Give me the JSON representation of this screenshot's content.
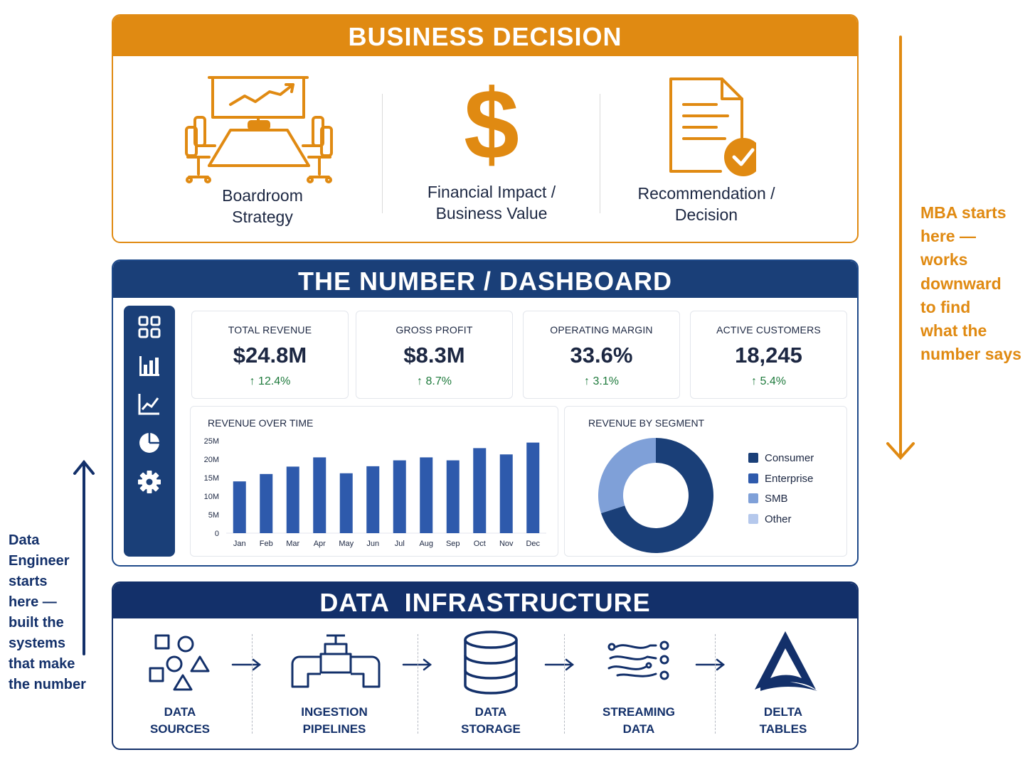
{
  "business": {
    "title": "BUSINESS DECISION",
    "items": [
      {
        "line1": "Boardroom",
        "line2": "Strategy",
        "icon": "boardroom-icon"
      },
      {
        "line1": "Financial Impact /",
        "line2": "Business Value",
        "icon": "dollar-icon"
      },
      {
        "line1": "Recommendation /",
        "line2": "Decision",
        "icon": "document-check-icon"
      }
    ],
    "color": "#e08a12"
  },
  "dashboard": {
    "title": "THE NUMBER / DASHBOARD",
    "sidebar_icons": [
      "grid-icon",
      "bar-chart-icon",
      "line-chart-icon",
      "pie-chart-icon",
      "gear-icon"
    ],
    "kpis": [
      {
        "label": "TOTAL REVENUE",
        "value": "$24.8M",
        "change": "↑ 12.4%"
      },
      {
        "label": "GROSS PROFIT",
        "value": "$8.3M",
        "change": "↑ 8.7%"
      },
      {
        "label": "OPERATING MARGIN",
        "value": "33.6%",
        "change": "↑ 3.1%"
      },
      {
        "label": "ACTIVE CUSTOMERS",
        "value": "18,245",
        "change": "↑ 5.4%"
      }
    ],
    "revenue_card_title": "REVENUE OVER TIME",
    "segment_card_title": "REVENUE BY SEGMENT",
    "color": "#1a3f78"
  },
  "chart_data": [
    {
      "type": "bar",
      "title": "REVENUE OVER TIME",
      "categories": [
        "Jan",
        "Feb",
        "Mar",
        "Apr",
        "May",
        "Jun",
        "Jul",
        "Aug",
        "Sep",
        "Oct",
        "Nov",
        "Dec"
      ],
      "values": [
        14,
        16,
        18,
        20.5,
        16.2,
        18.1,
        19.7,
        20.5,
        19.7,
        23,
        21.3,
        24.5
      ],
      "ylim": [
        0,
        25
      ],
      "yticks": [
        "0",
        "5M",
        "10M",
        "15M",
        "20M",
        "25M"
      ],
      "color": "#2e5aac"
    },
    {
      "type": "pie",
      "title": "REVENUE BY SEGMENT",
      "categories": [
        "Consumer",
        "Enterprise",
        "SMB",
        "Other"
      ],
      "values": [
        70,
        0,
        30,
        0
      ],
      "colors": [
        "#1a3f78",
        "#2e5aac",
        "#7fa0d8",
        "#b5c8ec"
      ]
    }
  ],
  "infra": {
    "title": "DATA  INFRASTRUCTURE",
    "steps": [
      {
        "line1": "DATA",
        "line2": "SOURCES",
        "icon": "shapes-icon"
      },
      {
        "line1": "INGESTION",
        "line2": "PIPELINES",
        "icon": "pipe-faucet-icon"
      },
      {
        "line1": "DATA",
        "line2": "STORAGE",
        "icon": "database-icon"
      },
      {
        "line1": "STREAMING",
        "line2": "DATA",
        "icon": "streaming-icon"
      },
      {
        "line1": "DELTA",
        "line2": "TABLES",
        "icon": "delta-icon"
      }
    ],
    "color": "#13306a"
  },
  "notes": {
    "mba": [
      "MBA starts",
      "here —",
      "works",
      "downward",
      "to find",
      "what the",
      "number says"
    ],
    "data_engineer": [
      "Data",
      "Engineer",
      "starts",
      "here —",
      "built the",
      "systems",
      "that make",
      "the number"
    ]
  }
}
